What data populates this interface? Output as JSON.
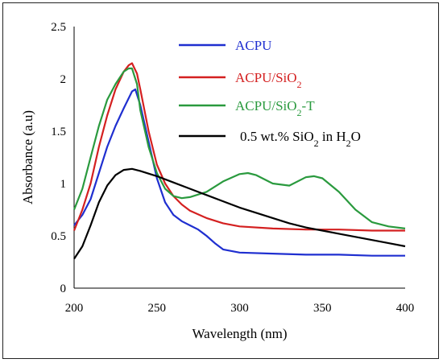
{
  "chart_data": {
    "type": "line",
    "xlabel": "Wavelength (nm)",
    "ylabel": "Absorbance (a.u)",
    "xlim": [
      200,
      400
    ],
    "ylim": [
      0,
      2.5
    ],
    "x_ticks": [
      200,
      250,
      300,
      350,
      400
    ],
    "y_ticks": [
      0,
      0.5,
      1,
      1.5,
      2,
      2.5
    ],
    "grid": false,
    "legend_position": "top-right",
    "series": [
      {
        "name_parts": [
          "ACPU"
        ],
        "color": "#1f2fd0",
        "x": [
          200,
          205,
          210,
          215,
          220,
          225,
          230,
          235,
          237,
          240,
          245,
          250,
          255,
          260,
          265,
          270,
          275,
          280,
          285,
          290,
          300,
          320,
          340,
          360,
          380,
          400
        ],
        "y": [
          0.6,
          0.7,
          0.85,
          1.1,
          1.35,
          1.55,
          1.72,
          1.88,
          1.9,
          1.75,
          1.4,
          1.05,
          0.82,
          0.7,
          0.64,
          0.6,
          0.56,
          0.5,
          0.43,
          0.37,
          0.34,
          0.33,
          0.32,
          0.32,
          0.31,
          0.31
        ]
      },
      {
        "name_parts": [
          "ACPU/SiO",
          "2"
        ],
        "color": "#d42020",
        "x": [
          200,
          205,
          210,
          215,
          220,
          225,
          230,
          233,
          235,
          238,
          240,
          245,
          250,
          255,
          260,
          265,
          270,
          280,
          290,
          300,
          320,
          340,
          360,
          380,
          400
        ],
        "y": [
          0.55,
          0.75,
          1.0,
          1.35,
          1.65,
          1.9,
          2.07,
          2.13,
          2.15,
          2.05,
          1.9,
          1.5,
          1.18,
          1.0,
          0.88,
          0.8,
          0.74,
          0.67,
          0.62,
          0.59,
          0.57,
          0.56,
          0.56,
          0.55,
          0.55
        ]
      },
      {
        "name_parts": [
          "ACPU/SiO",
          "2",
          "-T"
        ],
        "color": "#2a9a3e",
        "x": [
          200,
          205,
          210,
          215,
          220,
          225,
          230,
          233,
          235,
          238,
          240,
          245,
          250,
          255,
          260,
          265,
          270,
          280,
          290,
          300,
          305,
          310,
          320,
          330,
          340,
          345,
          350,
          360,
          370,
          380,
          390,
          400
        ],
        "y": [
          0.75,
          0.95,
          1.25,
          1.55,
          1.8,
          1.95,
          2.07,
          2.1,
          2.1,
          1.95,
          1.7,
          1.35,
          1.1,
          0.95,
          0.88,
          0.86,
          0.87,
          0.92,
          1.02,
          1.09,
          1.1,
          1.08,
          1.0,
          0.98,
          1.06,
          1.07,
          1.05,
          0.92,
          0.75,
          0.63,
          0.59,
          0.57
        ]
      },
      {
        "name_parts": [
          "0.5 wt.% SiO",
          "2",
          " in H",
          "2",
          "O"
        ],
        "color": "#000000",
        "x": [
          200,
          205,
          210,
          215,
          220,
          225,
          230,
          235,
          240,
          250,
          260,
          270,
          280,
          290,
          300,
          310,
          320,
          330,
          340,
          350,
          360,
          370,
          380,
          390,
          400
        ],
        "y": [
          0.28,
          0.4,
          0.6,
          0.82,
          0.98,
          1.08,
          1.13,
          1.14,
          1.12,
          1.07,
          1.01,
          0.95,
          0.89,
          0.83,
          0.77,
          0.72,
          0.67,
          0.62,
          0.58,
          0.55,
          0.52,
          0.49,
          0.46,
          0.43,
          0.4
        ]
      }
    ]
  }
}
